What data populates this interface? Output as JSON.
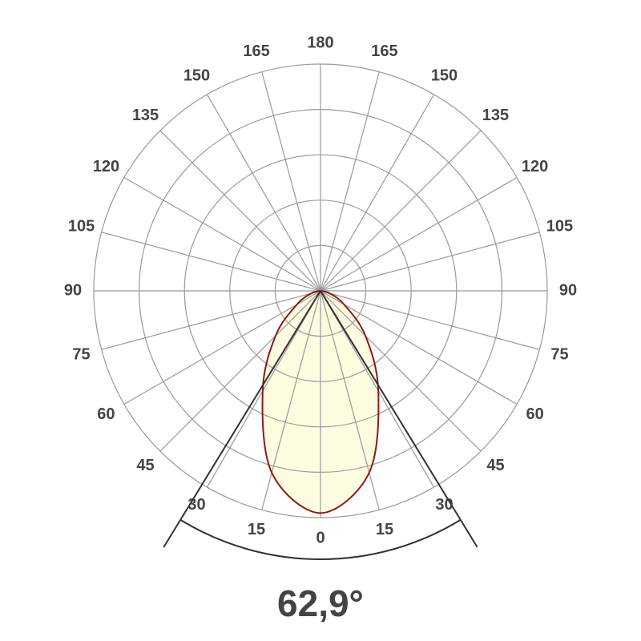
{
  "chart_data": {
    "type": "polar",
    "beam_angle": {
      "value": 62.9,
      "label": "62,9°"
    },
    "theta": [
      -90,
      -75,
      -60,
      -45,
      -30,
      -15,
      0,
      15,
      30,
      45,
      60,
      75,
      90
    ],
    "values": [
      0,
      4,
      12,
      28,
      51,
      83,
      98,
      83,
      51,
      28,
      12,
      4,
      0
    ],
    "color": "#8b1a1a",
    "fill": "#fdfbe0",
    "rlim": [
      0,
      100
    ],
    "rticks": [
      20,
      40,
      60,
      80,
      100
    ],
    "thetaticks": [
      0,
      15,
      30,
      45,
      60,
      75,
      90,
      105,
      120,
      135,
      150,
      165,
      180
    ],
    "grid": true
  }
}
